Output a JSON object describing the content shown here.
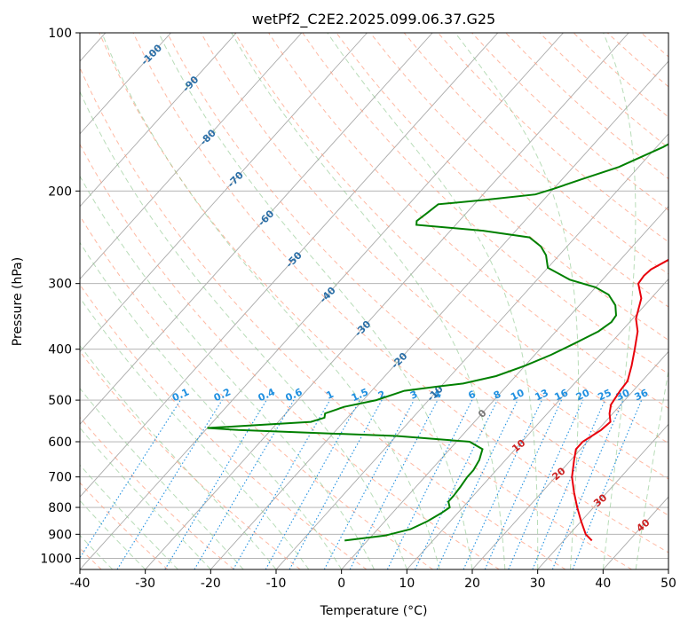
{
  "chart_data": {
    "type": "line",
    "title": "wetPf2_C2E2.2025.099.06.37.G25",
    "xlabel": "Temperature (°C)",
    "ylabel": "Pressure (hPa)",
    "xlim": [
      -40,
      50
    ],
    "ylim": [
      1050,
      100
    ],
    "y_scale": "log",
    "x_ticks": [
      -40,
      -30,
      -20,
      -10,
      0,
      10,
      20,
      30,
      40,
      50
    ],
    "y_ticks": [
      100,
      200,
      300,
      400,
      500,
      600,
      700,
      800,
      900,
      1000
    ],
    "grid": true,
    "series": [
      {
        "role": "temperature",
        "color": "#e8000b",
        "points": [
          [
            34.3,
            925
          ],
          [
            32.5,
            900
          ],
          [
            30.0,
            850
          ],
          [
            27.5,
            800
          ],
          [
            25.0,
            750
          ],
          [
            22.5,
            700
          ],
          [
            20.5,
            650
          ],
          [
            19.3,
            620
          ],
          [
            19.3,
            600
          ],
          [
            20.5,
            570
          ],
          [
            20.8,
            550
          ],
          [
            19.5,
            530
          ],
          [
            18.5,
            510
          ],
          [
            18.0,
            480
          ],
          [
            17.8,
            460
          ],
          [
            16.3,
            430
          ],
          [
            14.5,
            400
          ],
          [
            12.5,
            370
          ],
          [
            10.5,
            350
          ],
          [
            8.5,
            320
          ],
          [
            6.0,
            300
          ],
          [
            5.8,
            290
          ],
          [
            6.0,
            282
          ],
          [
            8.0,
            265
          ],
          [
            10.0,
            250
          ],
          [
            12.0,
            235
          ],
          [
            12.8,
            220
          ],
          [
            12.8,
            210
          ],
          [
            12.3,
            200
          ],
          [
            10.5,
            180
          ],
          [
            8.5,
            165
          ],
          [
            6.5,
            150
          ],
          [
            6.2,
            140
          ],
          [
            6.0,
            135
          ],
          [
            5.5,
            130
          ],
          [
            4.5,
            120
          ],
          [
            3.6,
            110
          ],
          [
            3.3,
            100
          ]
        ]
      },
      {
        "role": "dewpoint",
        "color": "#008000",
        "points": [
          [
            -3.5,
            925
          ],
          [
            2.0,
            905
          ],
          [
            5.0,
            880
          ],
          [
            6.5,
            850
          ],
          [
            7.5,
            820
          ],
          [
            8.0,
            800
          ],
          [
            7.0,
            780
          ],
          [
            7.0,
            760
          ],
          [
            6.8,
            730
          ],
          [
            6.5,
            700
          ],
          [
            6.5,
            680
          ],
          [
            6.0,
            650
          ],
          [
            5.0,
            620
          ],
          [
            2.0,
            600
          ],
          [
            -10.0,
            585
          ],
          [
            -35.0,
            570
          ],
          [
            -40.0,
            565
          ],
          [
            -35.0,
            560
          ],
          [
            -25.0,
            550
          ],
          [
            -23.5,
            540
          ],
          [
            -24.0,
            530
          ],
          [
            -22.0,
            515
          ],
          [
            -18.0,
            500
          ],
          [
            -15.0,
            480
          ],
          [
            -10.0,
            470
          ],
          [
            -7.0,
            465
          ],
          [
            -3.0,
            450
          ],
          [
            0.0,
            430
          ],
          [
            2.5,
            410
          ],
          [
            4.5,
            390
          ],
          [
            6.5,
            370
          ],
          [
            7.2,
            355
          ],
          [
            7.0,
            345
          ],
          [
            5.5,
            330
          ],
          [
            3.0,
            315
          ],
          [
            0.0,
            305
          ],
          [
            -5.0,
            295
          ],
          [
            -10.0,
            280
          ],
          [
            -12.0,
            265
          ],
          [
            -14.0,
            255
          ],
          [
            -17.0,
            245
          ],
          [
            -25.0,
            238
          ],
          [
            -36.0,
            232
          ],
          [
            -36.5,
            228
          ],
          [
            -36.0,
            220
          ],
          [
            -35.5,
            212
          ],
          [
            -29.0,
            208
          ],
          [
            -22.0,
            203
          ],
          [
            -20.0,
            198
          ],
          [
            -17.0,
            190
          ],
          [
            -13.0,
            180
          ],
          [
            -9.0,
            165
          ],
          [
            -7.0,
            155
          ],
          [
            -5.5,
            140
          ],
          [
            -4.0,
            125
          ],
          [
            -2.0,
            112
          ],
          [
            0.0,
            100
          ]
        ]
      }
    ],
    "annotations": {
      "isotherm_label": "0",
      "dry_adiabat_labels": [
        {
          "text": "-100",
          "x": -100,
          "y": 110
        },
        {
          "text": "-90",
          "x": -90,
          "y": 125
        },
        {
          "text": "-80",
          "x": -80,
          "y": 158
        },
        {
          "text": "-70",
          "x": -70,
          "y": 190
        },
        {
          "text": "-60",
          "x": -60,
          "y": 225
        },
        {
          "text": "-50",
          "x": -50,
          "y": 270
        },
        {
          "text": "-40",
          "x": -40,
          "y": 315
        },
        {
          "text": "-30",
          "x": -30,
          "y": 365
        },
        {
          "text": "-20",
          "x": -20,
          "y": 420
        },
        {
          "text": "-10",
          "x": -10,
          "y": 485
        }
      ],
      "moist_adiabat_labels": [
        {
          "text": "10",
          "x": 10,
          "y": 610
        },
        {
          "text": "20",
          "x": 20,
          "y": 690
        },
        {
          "text": "30",
          "x": 30,
          "y": 775
        },
        {
          "text": "40",
          "x": 40,
          "y": 865
        }
      ],
      "mixing_ratio_labels": [
        "0.1",
        "0.2",
        "0.4",
        "0.6",
        "1",
        "1.5",
        "2",
        "3",
        "4",
        "6",
        "8",
        "10",
        "13",
        "16",
        "20",
        "25",
        "30",
        "36"
      ]
    },
    "colors": {
      "isotherm": "#aaaaaa",
      "dry_adiabat": "#ff9a7a",
      "moist_adiabat": "#88c488",
      "mixing_ratio": "#1f7fe0",
      "temperature": "#e8000b",
      "dewpoint": "#008000",
      "dry_label": "#2a6ea6",
      "moist_label": "#cc2020",
      "mixing_label": "#2090e0"
    }
  }
}
